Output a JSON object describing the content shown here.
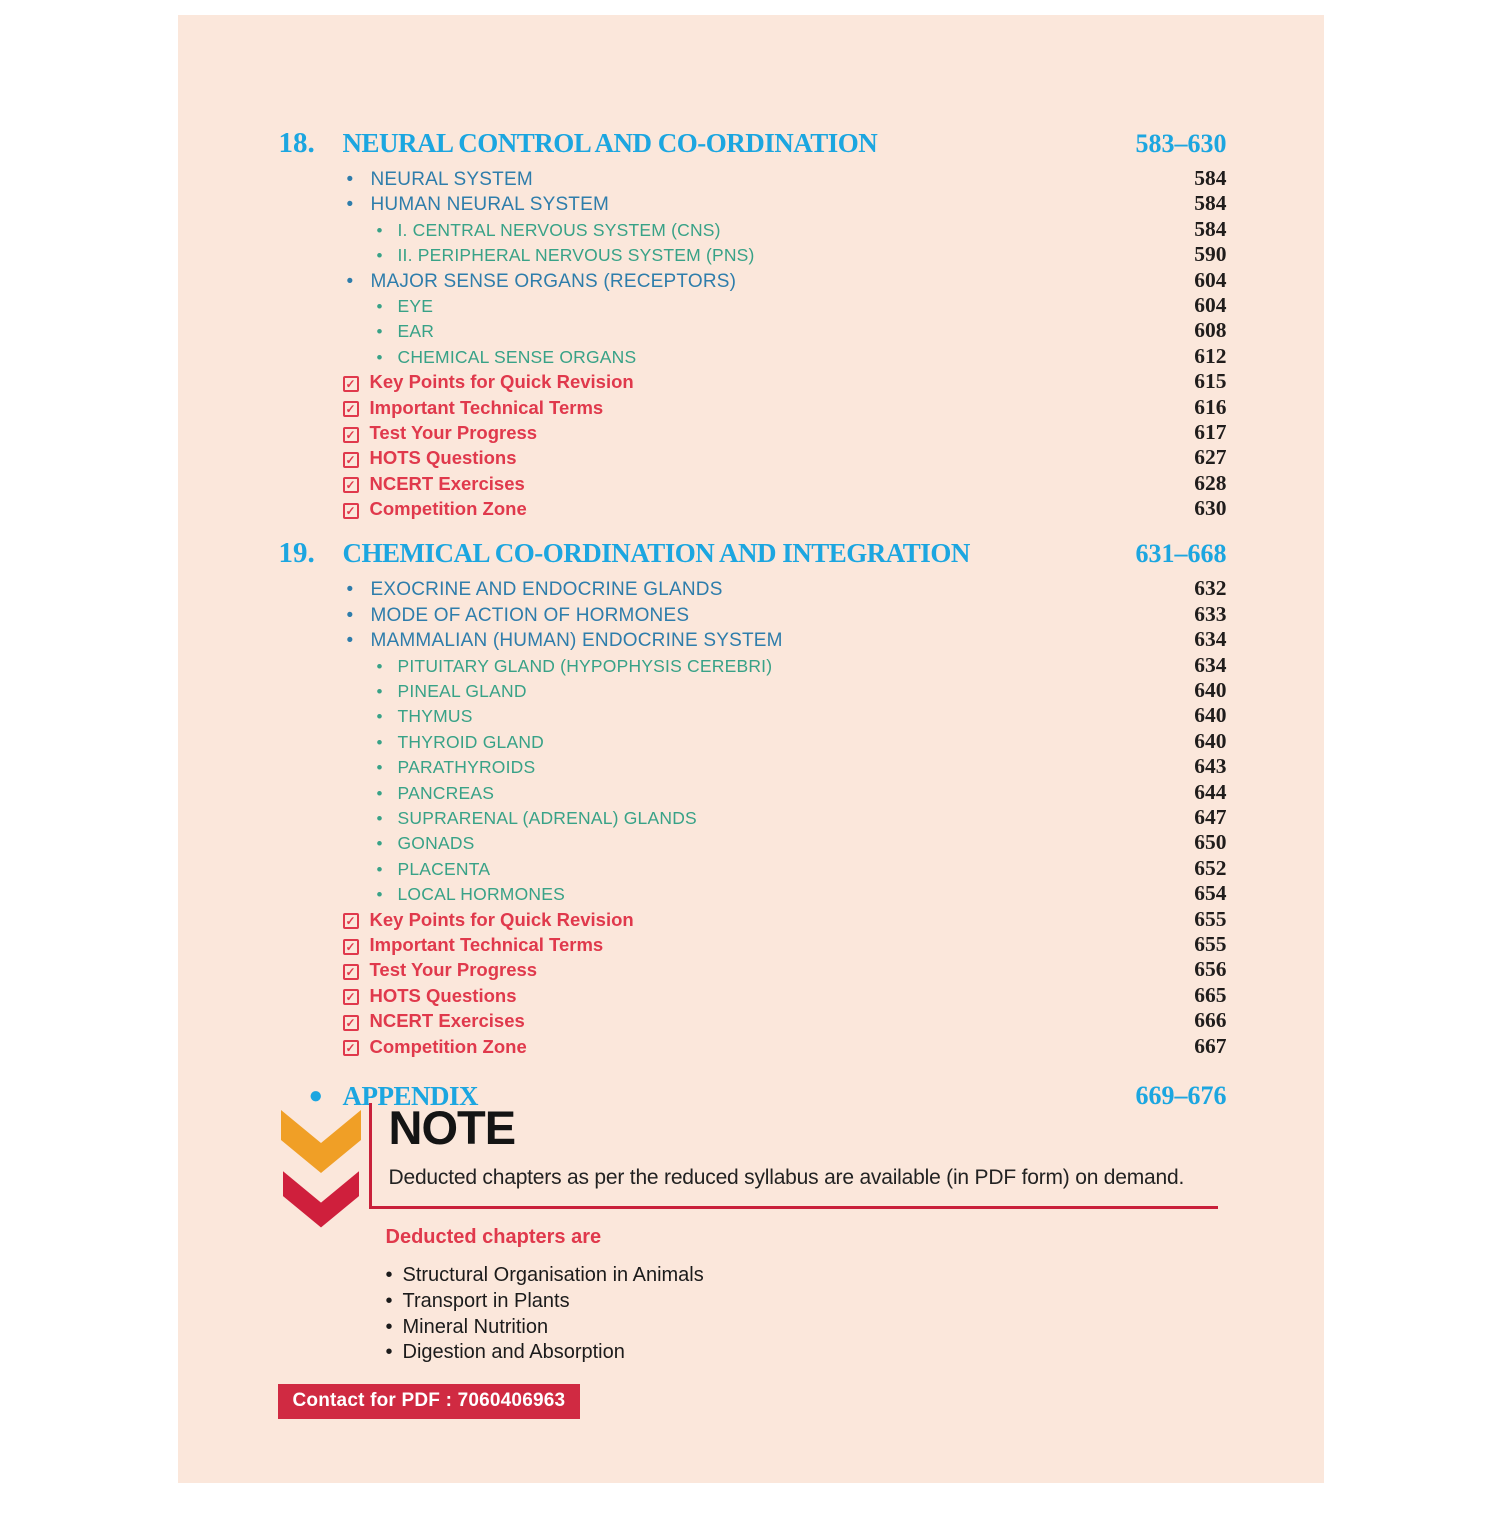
{
  "colors": {
    "page_background": "#fbe7db",
    "chapter_accent": "#1ca6e0",
    "level1_accent": "#2e7dab",
    "level2_accent": "#38a287",
    "feature_red": "#e0394c",
    "note_red": "#c9203a",
    "badge_red": "#d02a42",
    "chevron_orange": "#f09f26",
    "chevron_red": "#cf1f3c",
    "page_number_color": "#201d1c"
  },
  "icons": {
    "checkbox": "checked-checkbox-icon",
    "bullet": "bullet-dot",
    "note_chevrons": "double-chevron-down-icon"
  },
  "toc": {
    "chapters": [
      {
        "number": "18.",
        "title": "NEURAL CONTROL AND CO-ORDINATION",
        "pages": "583–630",
        "items": [
          {
            "type": "l1",
            "label": "NEURAL SYSTEM",
            "page": "584"
          },
          {
            "type": "l1",
            "label": "HUMAN NEURAL SYSTEM",
            "page": "584"
          },
          {
            "type": "l2",
            "label": "I. CENTRAL NERVOUS SYSTEM (CNS)",
            "page": "584"
          },
          {
            "type": "l2",
            "label": "II. PERIPHERAL NERVOUS SYSTEM (PNS)",
            "page": "590"
          },
          {
            "type": "l1",
            "label": "MAJOR SENSE ORGANS (RECEPTORS)",
            "page": "604"
          },
          {
            "type": "l2",
            "label": "EYE",
            "page": "604"
          },
          {
            "type": "l2",
            "label": "EAR",
            "page": "608"
          },
          {
            "type": "l2",
            "label": "CHEMICAL SENSE ORGANS",
            "page": "612"
          },
          {
            "type": "check",
            "label": "Key Points for Quick Revision",
            "page": "615"
          },
          {
            "type": "check",
            "label": "Important Technical Terms",
            "page": "616"
          },
          {
            "type": "check",
            "label": "Test Your Progress",
            "page": "617"
          },
          {
            "type": "check",
            "label": "HOTS Questions",
            "page": "627"
          },
          {
            "type": "check",
            "label": "NCERT Exercises",
            "page": "628"
          },
          {
            "type": "check",
            "label": "Competition Zone",
            "page": "630"
          }
        ]
      },
      {
        "number": "19.",
        "title": "CHEMICAL CO-ORDINATION AND INTEGRATION",
        "pages": "631–668",
        "items": [
          {
            "type": "l1",
            "label": "EXOCRINE AND ENDOCRINE GLANDS",
            "page": "632"
          },
          {
            "type": "l1",
            "label": "MODE OF ACTION OF HORMONES",
            "page": "633"
          },
          {
            "type": "l1",
            "label": "MAMMALIAN (HUMAN) ENDOCRINE SYSTEM",
            "page": "634"
          },
          {
            "type": "l2",
            "label": "PITUITARY GLAND (HYPOPHYSIS CEREBRI)",
            "page": "634"
          },
          {
            "type": "l2",
            "label": "PINEAL GLAND",
            "page": "640"
          },
          {
            "type": "l2",
            "label": "THYMUS",
            "page": "640"
          },
          {
            "type": "l2",
            "label": "THYROID GLAND",
            "page": "640"
          },
          {
            "type": "l2",
            "label": "PARATHYROIDS",
            "page": "643"
          },
          {
            "type": "l2",
            "label": "PANCREAS",
            "page": "644"
          },
          {
            "type": "l2",
            "label": "SUPRARENAL (ADRENAL) GLANDS",
            "page": "647"
          },
          {
            "type": "l2",
            "label": "GONADS",
            "page": "650"
          },
          {
            "type": "l2",
            "label": "PLACENTA",
            "page": "652"
          },
          {
            "type": "l2",
            "label": "LOCAL HORMONES",
            "page": "654"
          },
          {
            "type": "check",
            "label": "Key Points for Quick Revision",
            "page": "655"
          },
          {
            "type": "check",
            "label": "Important Technical Terms",
            "page": "655"
          },
          {
            "type": "check",
            "label": "Test Your Progress",
            "page": "656"
          },
          {
            "type": "check",
            "label": "HOTS Questions",
            "page": "665"
          },
          {
            "type": "check",
            "label": "NCERT Exercises",
            "page": "666"
          },
          {
            "type": "check",
            "label": "Competition Zone",
            "page": "667"
          }
        ]
      }
    ],
    "appendix": {
      "label": "APPENDIX",
      "pages": "669–676"
    }
  },
  "note": {
    "title": "NOTE",
    "text": "Deducted chapters as per the reduced syllabus are available (in PDF form) on demand.",
    "deducted_heading": "Deducted chapters are",
    "deducted_chapters": [
      "Structural Organisation in Animals",
      "Transport in Plants",
      "Mineral Nutrition",
      "Digestion and Absorption"
    ],
    "contact": "Contact  for PDF : 7060406963"
  }
}
